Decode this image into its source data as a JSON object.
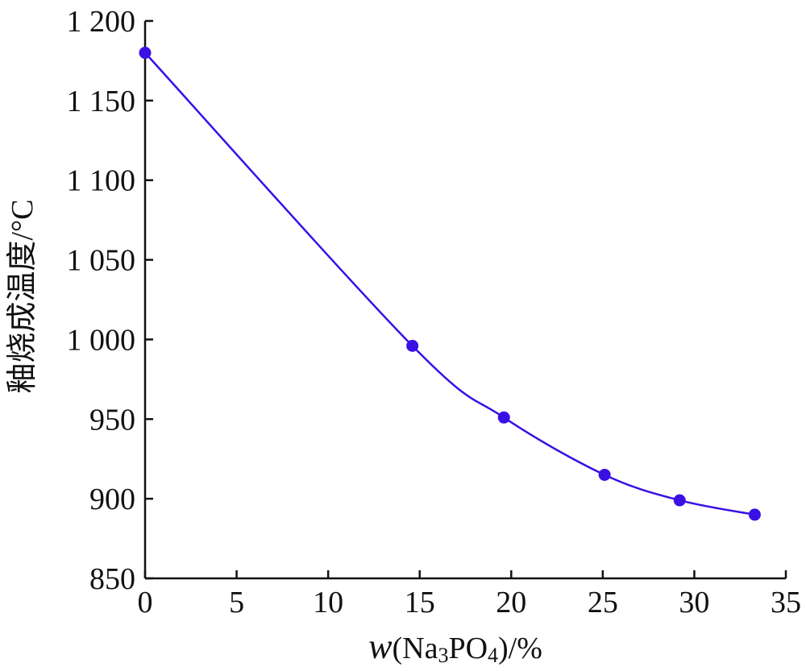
{
  "chart_data": {
    "type": "line",
    "title": "",
    "xlabel": "w(Na3PO4)/%",
    "xlabel_parts": {
      "italic": "w",
      "open": "(Na",
      "sub1": "3",
      "mid": "PO",
      "sub2": "4",
      "close": ")/%"
    },
    "ylabel": "釉烧成温度/°C",
    "xlim": [
      0,
      35
    ],
    "ylim": [
      850,
      1200
    ],
    "x_ticks": [
      0,
      5,
      10,
      15,
      20,
      25,
      30,
      35
    ],
    "y_ticks": [
      850,
      900,
      950,
      1000,
      1050,
      1100,
      1150,
      1200
    ],
    "y_tick_labels": [
      "850",
      "900",
      "950",
      "1 000",
      "1 050",
      "1 100",
      "1 150",
      "1 200"
    ],
    "grid": false,
    "line_color": "#3a10e5",
    "marker_color": "#3a10e5",
    "series": [
      {
        "x": [
          0,
          14.6,
          19.6,
          25.1,
          29.2,
          33.3
        ],
        "y": [
          1180,
          996,
          951,
          915,
          899,
          890
        ]
      }
    ]
  }
}
